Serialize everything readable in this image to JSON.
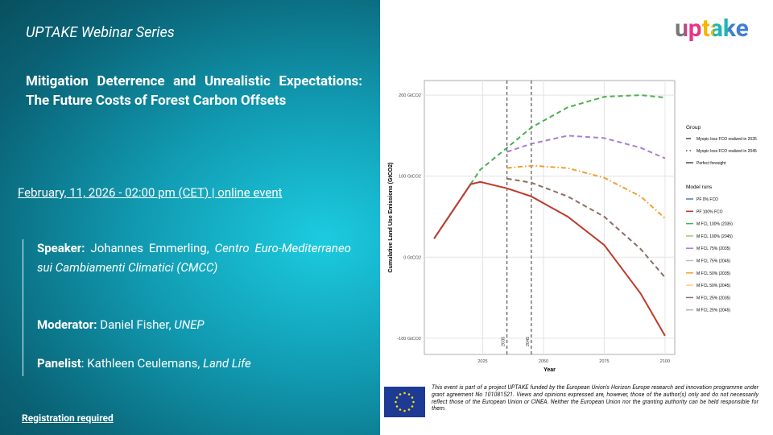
{
  "header": {
    "series_title": "UPTAKE Webinar Series",
    "logo": "uptake"
  },
  "title": "Mitigation Deterrence and Unrealistic Expectations: The Future Costs of Forest Carbon Offsets",
  "date_line": "February, 11, 2026 - 02:00 pm (CET) | online event",
  "people": [
    {
      "role": "Speaker:",
      "name": "Johannes Emmerling,",
      "affiliation": "Centro Euro-Mediterraneo sui Cambiamenti Climatici (CMCC)"
    },
    {
      "role": "Moderator:",
      "name": "Daniel Fisher,",
      "affiliation": "UNEP"
    },
    {
      "role": "Panelist",
      "name": ": Kathleen Ceulemans,",
      "affiliation": "Land Life"
    }
  ],
  "registration": "Registration required",
  "disclaimer": "This event is part of a project UPTAKE funded by the European Union's Horizon Europe research and innovation programme under grant agreement No 101081521. Views and opinions expressed are, however, those of the author(s) only and do not necessarily reflect those of the European Union or CINEA. Neither the European Union nor the granting authority can be held responsible for them.",
  "chart": {
    "type": "line",
    "x_label": "Year",
    "y_label": "Cumulative Land Use Emissions (GtCO2)",
    "x": [
      2005,
      2020,
      2024,
      2035,
      2045,
      2060,
      2075,
      2090,
      2100
    ],
    "xlim": [
      2001,
      2104
    ],
    "xticks": [
      2025,
      2050,
      2075,
      2100
    ],
    "ylim": [
      -120,
      218
    ],
    "yticks": [
      {
        "value": -100,
        "label": "-100 GtCO2"
      },
      {
        "value": 0,
        "label": "0 GtCO2"
      },
      {
        "value": 100,
        "label": "100 GtCO2"
      },
      {
        "value": 200,
        "label": "200 GtCO2"
      }
    ],
    "vlines": [
      2035,
      2045
    ],
    "grid": true,
    "series": [
      {
        "color": "#4a7fb5",
        "dash": "solid",
        "values": [
          23,
          90,
          null,
          null,
          null,
          null,
          null,
          null,
          null
        ]
      },
      {
        "color": "#4caf50",
        "dash": "dashed",
        "values": [
          null,
          90,
          108,
          135,
          160,
          185,
          198,
          200,
          197
        ]
      },
      {
        "color": "#a77dd6",
        "dash": "dashed",
        "values": [
          null,
          null,
          null,
          130,
          140,
          150,
          147,
          135,
          122
        ]
      },
      {
        "color": "#f0a030",
        "dash": "dashdot",
        "values": [
          null,
          null,
          null,
          110,
          113,
          110,
          98,
          75,
          48
        ]
      },
      {
        "color": "#8d6e63",
        "dash": "dashed",
        "values": [
          null,
          null,
          null,
          97,
          92,
          75,
          50,
          10,
          -25
        ]
      },
      {
        "color": "#c0392b",
        "dash": "solid",
        "values": [
          23,
          90,
          93,
          85,
          75,
          50,
          15,
          -45,
          -97
        ]
      }
    ],
    "legend_group_title": "Group",
    "legend_groups": [
      {
        "name": "Myopic loss FCO realized in 2035",
        "dash": "dashed"
      },
      {
        "name": "Myopic loss FCO realized in 2045",
        "dash": "dotted"
      },
      {
        "name": "Perfect foresight",
        "dash": "solid"
      }
    ],
    "legend_runs_title": "Model runs",
    "legend_runs": [
      {
        "name": "PF 0% FCO",
        "color": "#4a7fb5"
      },
      {
        "name": "PF 100% FCO",
        "color": "#c0392b"
      },
      {
        "name": "M FCL 100% (2035)",
        "color": "#4caf50"
      },
      {
        "name": "M FCL 100% (2045)",
        "color": "#9ccc65"
      },
      {
        "name": "M FCL 75% (2035)",
        "color": "#a77dd6"
      },
      {
        "name": "M FCL 75% (2045)",
        "color": "#bdbdbd"
      },
      {
        "name": "M FCL 50% (2035)",
        "color": "#f0a030"
      },
      {
        "name": "M FCL 50% (2045)",
        "color": "#f9cc88"
      },
      {
        "name": "M FCL 25% (2035)",
        "color": "#8d6e63"
      },
      {
        "name": "M FCL 25% (2045)",
        "color": "#c5aea6"
      }
    ]
  }
}
